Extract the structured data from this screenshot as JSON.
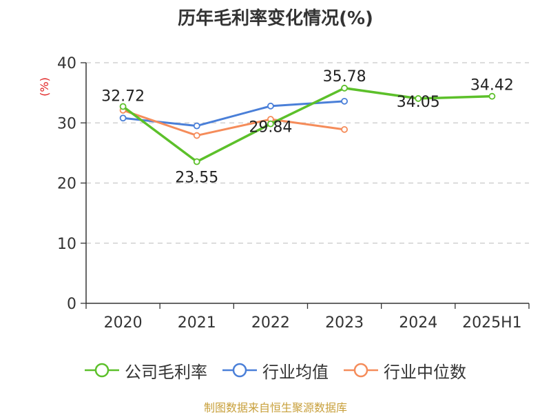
{
  "title": "历年毛利率变化情况(%)",
  "source": "制图数据来自恒生聚源数据库",
  "chart_data": {
    "type": "line",
    "title": "历年毛利率变化情况(%)",
    "ylabel": "(%)",
    "ylim": [
      0,
      40
    ],
    "yticks": [
      0,
      10,
      20,
      30,
      40
    ],
    "grid": true,
    "legend_position": "bottom",
    "categories": [
      "2020",
      "2021",
      "2022",
      "2023",
      "2024",
      "2025H1"
    ],
    "series": [
      {
        "name": "公司毛利率",
        "color": "#5cc02a",
        "values": [
          32.72,
          23.55,
          29.84,
          35.78,
          34.05,
          34.42
        ],
        "data_labels": [
          "32.72",
          "23.55",
          "29.84",
          "35.78",
          "34.05",
          "34.42"
        ]
      },
      {
        "name": "行业均值",
        "color": "#4a7fd8",
        "values": [
          30.8,
          29.5,
          32.8,
          33.6,
          null,
          null
        ]
      },
      {
        "name": "行业中位数",
        "color": "#f58c5a",
        "values": [
          32.1,
          27.9,
          30.6,
          28.9,
          null,
          null
        ]
      }
    ]
  }
}
